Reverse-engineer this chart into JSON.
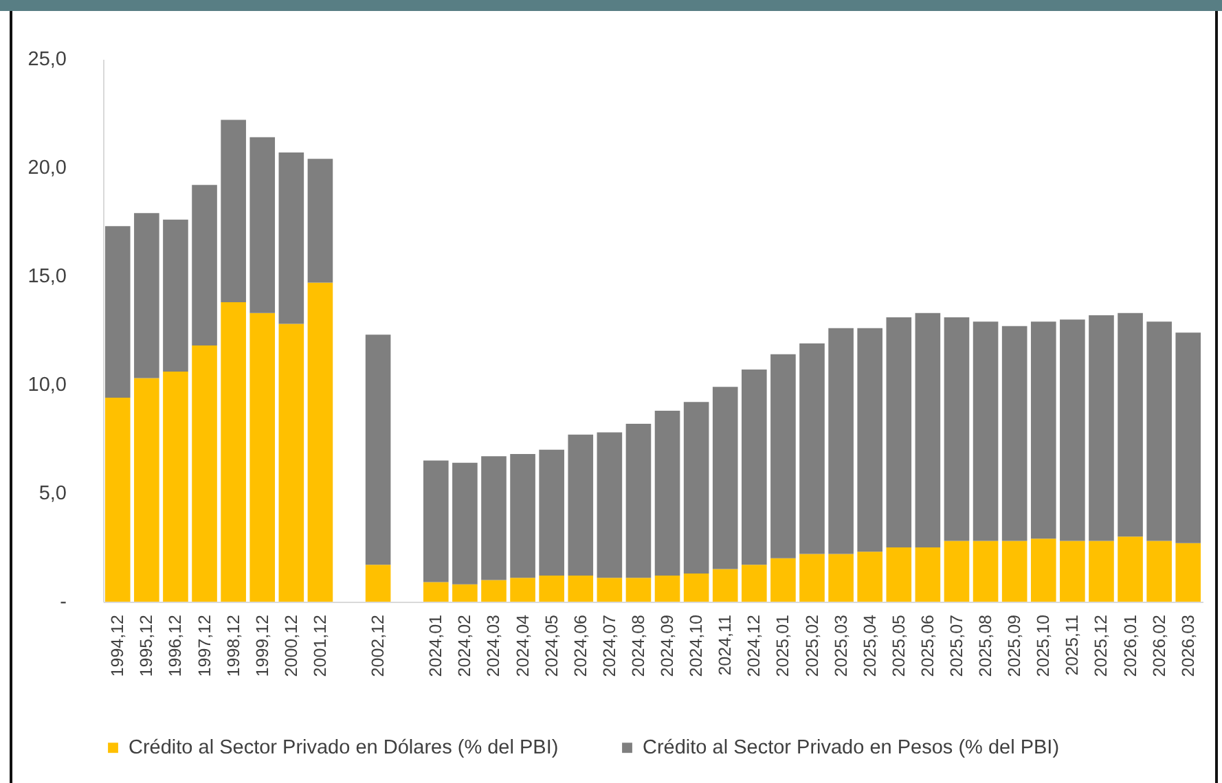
{
  "chart_data": {
    "type": "bar",
    "stacked": true,
    "categories": [
      "1994,12",
      "1995,12",
      "1996,12",
      "1997,12",
      "1998,12",
      "1999,12",
      "2000,12",
      "2001,12",
      null,
      "2002,12",
      null,
      "2024,01",
      "2024,02",
      "2024,03",
      "2024,04",
      "2024,05",
      "2024,06",
      "2024,07",
      "2024,08",
      "2024,09",
      "2024,10",
      "2024,11",
      "2024,12",
      "2025,01",
      "2025,02",
      "2025,03",
      "2025,04",
      "2025,05",
      "2025,06",
      "2025,07",
      "2025,08",
      "2025,09",
      "2025,10",
      "2025,11",
      "2025,12",
      "2026,01",
      "2026,02",
      "2026,03"
    ],
    "series": [
      {
        "name": "Crédito al Sector Privado en Dólares (% del PBI)",
        "color": "#ffc000",
        "values": [
          9.4,
          10.3,
          10.6,
          11.8,
          13.8,
          13.3,
          12.8,
          14.7,
          null,
          1.7,
          null,
          0.9,
          0.8,
          1.0,
          1.1,
          1.2,
          1.2,
          1.1,
          1.1,
          1.2,
          1.3,
          1.5,
          1.7,
          2.0,
          2.2,
          2.2,
          2.3,
          2.5,
          2.5,
          2.8,
          2.8,
          2.8,
          2.9,
          2.8,
          2.8,
          3.0,
          2.8,
          2.7
        ]
      },
      {
        "name": "Crédito al Sector Privado en Pesos (% del PBI)",
        "color": "#7f7f7f",
        "values": [
          7.9,
          7.6,
          7.0,
          7.4,
          8.4,
          8.1,
          7.9,
          5.7,
          null,
          10.6,
          null,
          5.6,
          5.6,
          5.7,
          5.7,
          5.8,
          6.5,
          6.7,
          7.1,
          7.6,
          7.9,
          8.4,
          9.0,
          9.4,
          9.7,
          10.4,
          10.3,
          10.6,
          10.8,
          10.3,
          10.1,
          9.9,
          10.0,
          10.2,
          10.4,
          10.3,
          10.1,
          9.7
        ]
      }
    ],
    "ylim": [
      0,
      25
    ],
    "yticks": [
      {
        "value": 0,
        "label": "-"
      },
      {
        "value": 5,
        "label": "5,0"
      },
      {
        "value": 10,
        "label": "10,0"
      },
      {
        "value": 15,
        "label": "15,0"
      },
      {
        "value": 20,
        "label": "20,0"
      },
      {
        "value": 25,
        "label": "25,0"
      }
    ],
    "grid": false,
    "legend": "bottom"
  }
}
